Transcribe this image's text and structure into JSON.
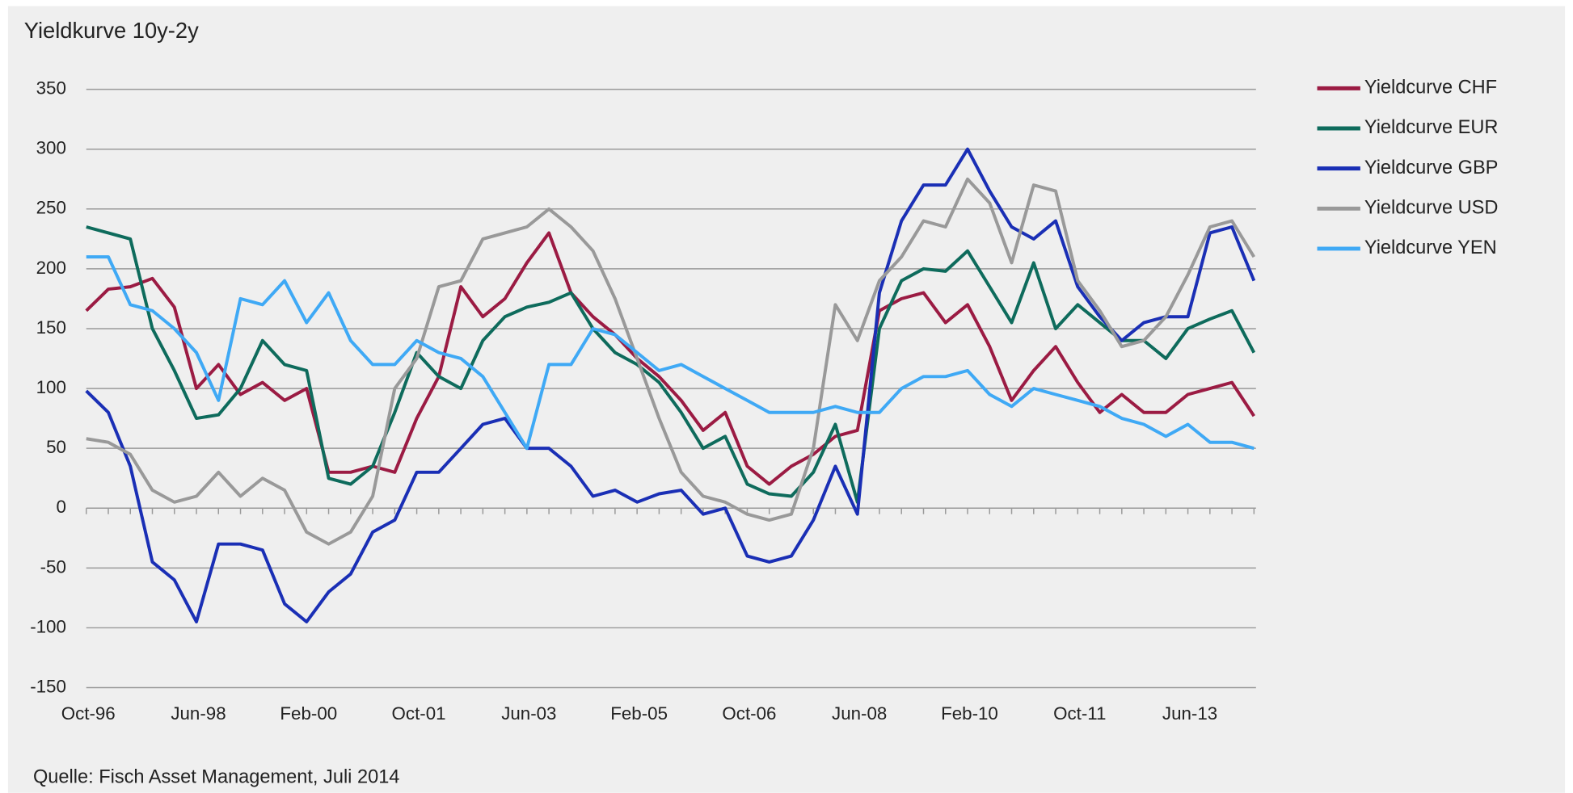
{
  "chart_data": {
    "type": "line",
    "title": "Yieldkurve 10y-2y",
    "source": "Quelle: Fisch Asset Management, Juli 2014",
    "categories": [
      "Oct-96",
      null,
      null,
      null,
      null,
      "Jun-98",
      null,
      null,
      null,
      null,
      "Feb-00",
      null,
      null,
      null,
      null,
      "Oct-01",
      null,
      null,
      null,
      null,
      "Jun-03",
      null,
      null,
      null,
      null,
      "Feb-05",
      null,
      null,
      null,
      null,
      "Oct-06",
      null,
      null,
      null,
      null,
      "Jun-08",
      null,
      null,
      null,
      null,
      "Feb-10",
      null,
      null,
      null,
      null,
      "Oct-11",
      null,
      null,
      null,
      null,
      "Jun-13",
      null,
      null,
      null
    ],
    "ylim": [
      -150,
      350
    ],
    "yticks": [
      -150,
      -100,
      -50,
      0,
      50,
      100,
      150,
      200,
      250,
      300,
      350
    ],
    "grid": true,
    "legend": "right",
    "series": [
      {
        "name": "Yieldcurve CHF",
        "color": "#9b1b43",
        "values": [
          165,
          183,
          185,
          192,
          168,
          100,
          120,
          95,
          105,
          90,
          100,
          30,
          30,
          35,
          30,
          75,
          110,
          185,
          160,
          175,
          205,
          230,
          180,
          160,
          145,
          125,
          110,
          90,
          65,
          80,
          35,
          20,
          35,
          45,
          60,
          65,
          165,
          175,
          180,
          155,
          170,
          135,
          90,
          115,
          135,
          105,
          80,
          95,
          80,
          80,
          95,
          100,
          105,
          77
        ]
      },
      {
        "name": "Yieldcurve EUR",
        "color": "#0e6b5c",
        "values": [
          235,
          230,
          225,
          150,
          115,
          75,
          78,
          100,
          140,
          120,
          115,
          25,
          20,
          35,
          80,
          130,
          110,
          100,
          140,
          160,
          168,
          172,
          180,
          150,
          130,
          120,
          105,
          80,
          50,
          60,
          20,
          12,
          10,
          30,
          70,
          5,
          150,
          190,
          200,
          198,
          215,
          185,
          155,
          205,
          150,
          170,
          155,
          140,
          140,
          125,
          150,
          158,
          165,
          130
        ]
      },
      {
        "name": "Yieldcurve GBP",
        "color": "#1a2fb5",
        "values": [
          98,
          80,
          35,
          -45,
          -60,
          -95,
          -30,
          -30,
          -35,
          -80,
          -95,
          -70,
          -55,
          -20,
          -10,
          30,
          30,
          50,
          70,
          75,
          50,
          50,
          35,
          10,
          15,
          5,
          12,
          15,
          -5,
          0,
          -40,
          -45,
          -40,
          -10,
          35,
          -5,
          180,
          240,
          270,
          270,
          300,
          265,
          235,
          225,
          240,
          185,
          160,
          140,
          155,
          160,
          160,
          230,
          235,
          190
        ]
      },
      {
        "name": "Yieldcurve USD",
        "color": "#999999",
        "values": [
          58,
          55,
          45,
          15,
          5,
          10,
          30,
          10,
          25,
          15,
          -20,
          -30,
          -20,
          10,
          100,
          125,
          185,
          190,
          225,
          230,
          235,
          250,
          235,
          215,
          175,
          125,
          75,
          30,
          10,
          5,
          -5,
          -10,
          -5,
          50,
          170,
          140,
          190,
          210,
          240,
          235,
          275,
          255,
          205,
          270,
          265,
          190,
          165,
          135,
          140,
          160,
          195,
          235,
          240,
          210
        ]
      },
      {
        "name": "Yieldcurve YEN",
        "color": "#3fa9f5",
        "values": [
          210,
          210,
          170,
          165,
          150,
          130,
          90,
          175,
          170,
          190,
          155,
          180,
          140,
          120,
          120,
          140,
          130,
          125,
          110,
          80,
          50,
          120,
          120,
          150,
          145,
          130,
          115,
          120,
          110,
          100,
          90,
          80,
          80,
          80,
          85,
          80,
          80,
          100,
          110,
          110,
          115,
          95,
          85,
          100,
          95,
          90,
          85,
          75,
          70,
          60,
          70,
          55,
          55,
          50
        ]
      }
    ]
  }
}
